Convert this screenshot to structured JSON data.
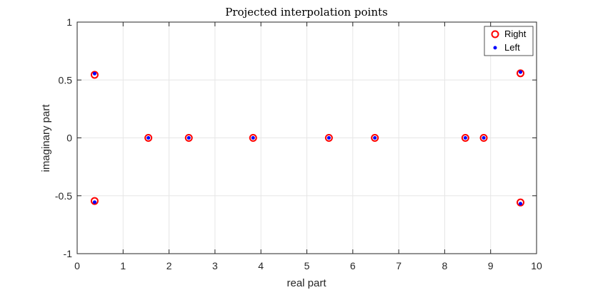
{
  "chart_data": {
    "type": "scatter",
    "title": "Projected interpolation points",
    "xlabel": "real part",
    "ylabel": "imaginary part",
    "xlim": [
      0,
      10
    ],
    "ylim": [
      -1,
      1
    ],
    "xticks": [
      0,
      1,
      2,
      3,
      4,
      5,
      6,
      7,
      8,
      9,
      10
    ],
    "yticks": [
      -1,
      -0.5,
      0,
      0.5,
      1
    ],
    "xtick_labels": [
      "0",
      "1",
      "2",
      "3",
      "4",
      "5",
      "6",
      "7",
      "8",
      "9",
      "10"
    ],
    "ytick_labels": [
      "-1",
      "-0.5",
      "0",
      "0.5",
      "1"
    ],
    "grid": true,
    "legend_position": "top-right",
    "series": [
      {
        "name": "Right",
        "marker": "open-circle",
        "color": "#ff0000",
        "points": [
          [
            0.38,
            0.545
          ],
          [
            0.38,
            -0.545
          ],
          [
            1.55,
            0
          ],
          [
            2.43,
            0
          ],
          [
            3.83,
            0
          ],
          [
            5.48,
            0
          ],
          [
            6.48,
            0
          ],
          [
            8.45,
            0
          ],
          [
            8.85,
            0
          ],
          [
            9.65,
            0.558
          ],
          [
            9.65,
            -0.558
          ]
        ]
      },
      {
        "name": "Left",
        "marker": "dot",
        "color": "#0000ff",
        "points": [
          [
            0.38,
            0.555
          ],
          [
            0.38,
            -0.555
          ],
          [
            1.55,
            0
          ],
          [
            2.43,
            0
          ],
          [
            3.83,
            0
          ],
          [
            5.48,
            0
          ],
          [
            6.48,
            0
          ],
          [
            8.45,
            0
          ],
          [
            8.85,
            0
          ],
          [
            9.65,
            0.568
          ],
          [
            9.65,
            -0.568
          ]
        ]
      }
    ]
  }
}
